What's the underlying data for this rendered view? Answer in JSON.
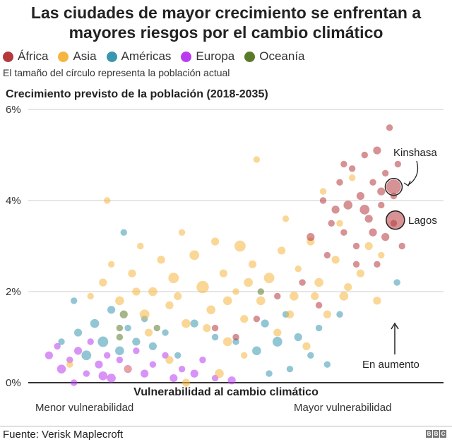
{
  "chart_data": {
    "type": "scatter",
    "title": "Las ciudades de mayor crecimiento se enfrentan a mayores riesgos por el cambio climático",
    "subtitle": "El tamaño del círculo representa la población actual",
    "ylabel": "Crecimiento previsto de la población (2018-2035)",
    "xlabel": "Vulnerabilidad al cambio climático",
    "x_low_label": "Menor vulnerabilidad",
    "x_high_label": "Mayor vulnerabilidad",
    "xlim": [
      0,
      100
    ],
    "ylim": [
      0,
      6
    ],
    "yticks": [
      0,
      2,
      4,
      6
    ],
    "ytick_labels": [
      "0%",
      "2%",
      "4%",
      "6%"
    ],
    "grid": true,
    "legend_placement": "top-left",
    "series": [
      {
        "name": "África",
        "color": "#b5383c",
        "points": [
          [
            45,
            1.2,
            1
          ],
          [
            50,
            1.0,
            1
          ],
          [
            55,
            1.4,
            1
          ],
          [
            60,
            1.9,
            1
          ],
          [
            66,
            2.2,
            1
          ],
          [
            68,
            3.2,
            2
          ],
          [
            70,
            1.7,
            1
          ],
          [
            72,
            2.8,
            1
          ],
          [
            74,
            3.8,
            2
          ],
          [
            75,
            4.4,
            1
          ],
          [
            76,
            3.3,
            1
          ],
          [
            77,
            3.9,
            3
          ],
          [
            78,
            4.7,
            1
          ],
          [
            79,
            3.0,
            1
          ],
          [
            80,
            4.1,
            2
          ],
          [
            81,
            5.0,
            1
          ],
          [
            82,
            3.6,
            2
          ],
          [
            83,
            4.4,
            1
          ],
          [
            84,
            2.6,
            1
          ],
          [
            84,
            5.1,
            2
          ],
          [
            85,
            3.9,
            1
          ],
          [
            86,
            4.6,
            1
          ],
          [
            86,
            3.2,
            2
          ],
          [
            87,
            5.6,
            1
          ],
          [
            88,
            4.1,
            1
          ],
          [
            88,
            3.5,
            1
          ],
          [
            89,
            4.8,
            1
          ],
          [
            90,
            3.0,
            1
          ],
          [
            81,
            3.8,
            4
          ],
          [
            76,
            4.8,
            1
          ],
          [
            73,
            3.5,
            1
          ],
          [
            79,
            2.6,
            1
          ],
          [
            71,
            4.0,
            1
          ],
          [
            83,
            3.3,
            2
          ],
          [
            85,
            4.2,
            2
          ],
          [
            88,
            4.3,
            13
          ],
          [
            88.4,
            3.57,
            21
          ]
        ]
      },
      {
        "name": "Asia",
        "color": "#f5b640",
        "points": [
          [
            10,
            0.4,
            1
          ],
          [
            15,
            1.9,
            1
          ],
          [
            18,
            2.2,
            2
          ],
          [
            20,
            2.6,
            1
          ],
          [
            22,
            1.8,
            3
          ],
          [
            25,
            2.4,
            2
          ],
          [
            27,
            3.0,
            1
          ],
          [
            28,
            1.5,
            4
          ],
          [
            30,
            2.0,
            3
          ],
          [
            32,
            2.7,
            2
          ],
          [
            34,
            1.7,
            2
          ],
          [
            35,
            2.3,
            5
          ],
          [
            37,
            3.3,
            1
          ],
          [
            38,
            1.3,
            3
          ],
          [
            40,
            2.8,
            4
          ],
          [
            42,
            2.1,
            8
          ],
          [
            44,
            1.6,
            3
          ],
          [
            45,
            3.1,
            2
          ],
          [
            47,
            2.4,
            2
          ],
          [
            48,
            0.9,
            3
          ],
          [
            50,
            2.0,
            1
          ],
          [
            51,
            3.0,
            6
          ],
          [
            52,
            1.4,
            2
          ],
          [
            54,
            2.6,
            2
          ],
          [
            55,
            4.9,
            1
          ],
          [
            56,
            1.8,
            3
          ],
          [
            58,
            2.3,
            5
          ],
          [
            60,
            1.1,
            2
          ],
          [
            61,
            2.9,
            2
          ],
          [
            62,
            3.6,
            1
          ],
          [
            64,
            1.9,
            3
          ],
          [
            65,
            2.5,
            1
          ],
          [
            67,
            0.8,
            2
          ],
          [
            68,
            3.1,
            2
          ],
          [
            70,
            2.2,
            3
          ],
          [
            71,
            4.2,
            1
          ],
          [
            72,
            1.5,
            2
          ],
          [
            74,
            2.7,
            2
          ],
          [
            75,
            3.5,
            1
          ],
          [
            76,
            1.9,
            3
          ],
          [
            78,
            4.5,
            1
          ],
          [
            80,
            2.4,
            2
          ],
          [
            82,
            3.0,
            2
          ],
          [
            84,
            1.8,
            2
          ],
          [
            85,
            2.8,
            1
          ],
          [
            24,
            0.3,
            1
          ],
          [
            34,
            0.5,
            2
          ],
          [
            46,
            0.2,
            3
          ],
          [
            52,
            0.6,
            1
          ],
          [
            19,
            4.0,
            1
          ],
          [
            38,
            0.0,
            2
          ],
          [
            29,
            1.1,
            2
          ],
          [
            43,
            1.2,
            2
          ],
          [
            53,
            2.2,
            3
          ],
          [
            63,
            1.5,
            2
          ],
          [
            69,
            1.9,
            2
          ],
          [
            77,
            2.1,
            2
          ],
          [
            26,
            2.0,
            2
          ],
          [
            36,
            1.9,
            2
          ],
          [
            48,
            1.8,
            3
          ]
        ]
      },
      {
        "name": "Américas",
        "color": "#3b97b0",
        "points": [
          [
            8,
            0.9,
            1
          ],
          [
            12,
            1.1,
            2
          ],
          [
            14,
            0.6,
            4
          ],
          [
            16,
            1.3,
            3
          ],
          [
            18,
            0.9,
            5
          ],
          [
            20,
            1.6,
            2
          ],
          [
            22,
            0.7,
            3
          ],
          [
            24,
            1.2,
            1
          ],
          [
            26,
            0.9,
            2
          ],
          [
            28,
            1.4,
            1
          ],
          [
            30,
            0.8,
            2
          ],
          [
            33,
            1.1,
            1
          ],
          [
            36,
            0.6,
            1
          ],
          [
            40,
            1.3,
            2
          ],
          [
            45,
            1.0,
            1
          ],
          [
            50,
            0.9,
            1
          ],
          [
            55,
            0.7,
            3
          ],
          [
            57,
            1.3,
            2
          ],
          [
            60,
            0.9,
            4
          ],
          [
            62,
            1.5,
            1
          ],
          [
            65,
            1.0,
            2
          ],
          [
            68,
            0.6,
            1
          ],
          [
            70,
            1.2,
            1
          ],
          [
            72,
            0.4,
            1
          ],
          [
            75,
            1.5,
            1
          ],
          [
            88.8,
            2.2,
            1
          ],
          [
            23,
            3.3,
            1
          ],
          [
            11,
            1.8,
            1
          ],
          [
            58,
            0.2,
            1
          ],
          [
            63,
            0.3,
            1
          ]
        ]
      },
      {
        "name": "Europa",
        "color": "#b83bf0",
        "points": [
          [
            5,
            0.6,
            2
          ],
          [
            7,
            0.8,
            1
          ],
          [
            8,
            0.3,
            3
          ],
          [
            10,
            0.5,
            1
          ],
          [
            12,
            0.7,
            2
          ],
          [
            14,
            0.2,
            1
          ],
          [
            15,
            0.9,
            1
          ],
          [
            17,
            0.4,
            2
          ],
          [
            19,
            0.6,
            1
          ],
          [
            20,
            0.1,
            3
          ],
          [
            22,
            0.5,
            1
          ],
          [
            24,
            0.3,
            2
          ],
          [
            26,
            0.7,
            1
          ],
          [
            28,
            0.2,
            2
          ],
          [
            30,
            0.4,
            1
          ],
          [
            33,
            0.6,
            1
          ],
          [
            35,
            0.1,
            2
          ],
          [
            37,
            0.3,
            1
          ],
          [
            40,
            0.2,
            2
          ],
          [
            42,
            0.5,
            1
          ],
          [
            45,
            0.1,
            1
          ],
          [
            49,
            0.05,
            2
          ],
          [
            11,
            0.0,
            1
          ],
          [
            18,
            0.15,
            3
          ]
        ]
      },
      {
        "name": "Oceanía",
        "color": "#5a7a2a",
        "points": [
          [
            22,
            1.0,
            1
          ],
          [
            23,
            1.5,
            2
          ],
          [
            22,
            1.2,
            1
          ],
          [
            31,
            1.2,
            1
          ],
          [
            56,
            2.0,
            1
          ]
        ]
      }
    ],
    "point_fields": [
      "vulnerabilidad",
      "crecimiento_pct",
      "poblacion"
    ],
    "annotations": [
      {
        "text": "Kinshasa",
        "x": 88,
        "y": 4.3
      },
      {
        "text": "Lagos",
        "x": 88.4,
        "y": 3.57
      },
      {
        "text": "En aumento",
        "x": 88.5,
        "y": 1.3
      }
    ]
  },
  "source": "Fuente: Verisk Maplecroft",
  "logo": "BBC"
}
